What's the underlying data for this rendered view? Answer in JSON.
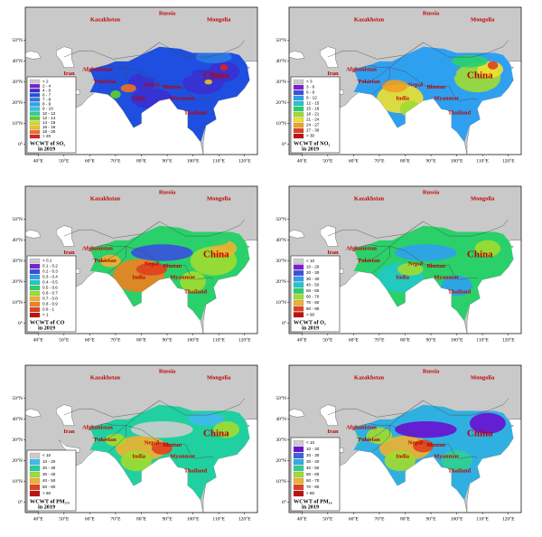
{
  "map_labels": [
    "Russia",
    "Kazakhstan",
    "Mongolia",
    "Iran",
    "Afghanistan",
    "Pakistan",
    "India",
    "Nepal",
    "Bhutan",
    "Myanmar",
    "Thailand",
    "China"
  ],
  "lon_ticks": [
    {
      "value": 40,
      "label": "40°E"
    },
    {
      "value": 50,
      "label": "50°E"
    },
    {
      "value": 60,
      "label": "60°E"
    },
    {
      "value": 70,
      "label": "70°E"
    },
    {
      "value": 80,
      "label": "80°E"
    },
    {
      "value": 90,
      "label": "90°E"
    },
    {
      "value": 100,
      "label": "100°E"
    },
    {
      "value": 110,
      "label": "110°E"
    },
    {
      "value": 120,
      "label": "120°E"
    }
  ],
  "lat_ticks": [
    {
      "value": 0,
      "label": "0°"
    },
    {
      "value": 10,
      "label": "10°N"
    },
    {
      "value": 20,
      "label": "20°N"
    },
    {
      "value": 30,
      "label": "30°N"
    },
    {
      "value": 40,
      "label": "40°N"
    },
    {
      "value": 50,
      "label": "50°N"
    }
  ],
  "panels": [
    {
      "title": "WCWT of SO₂",
      "year": "in 2019",
      "legend": {
        "labels": [
          "< 2",
          "2 - 4",
          "4 - 6",
          "6 - 7",
          "7 - 8",
          "8 - 9",
          "9 - 10",
          "10 - 12",
          "12 - 14",
          "14 - 16",
          "16 - 18",
          "18 - 20",
          "> 20"
        ],
        "colors": [
          "#cccccc",
          "#7a1fd6",
          "#3a2fd0",
          "#1f4fe0",
          "#2a7ae8",
          "#2fa0f0",
          "#20c8e8",
          "#2ad08a",
          "#5ad02a",
          "#c8e02a",
          "#f0c020",
          "#f07020",
          "#e02020"
        ]
      }
    },
    {
      "title": "WCWT of NO₂",
      "year": "in 2019",
      "legend": {
        "labels": [
          "< 3",
          "3 - 6",
          "6 - 9",
          "9 - 12",
          "12 - 15",
          "15 - 18",
          "18 - 21",
          "21 - 24",
          "24 - 27",
          "27 - 30",
          "> 30"
        ],
        "colors": [
          "#cccccc",
          "#7a1fd6",
          "#3a4fe0",
          "#2fa0f0",
          "#20c8c8",
          "#2ad06a",
          "#a0dc30",
          "#f0e030",
          "#f0a020",
          "#e04020",
          "#c01010"
        ]
      }
    },
    {
      "title": "WCWT of CO",
      "year": "in 2019",
      "legend": {
        "labels": [
          "< 0.1",
          "0.1 - 0.2",
          "0.2 - 0.3",
          "0.3 - 0.4",
          "0.4 - 0.5",
          "0.5 - 0.6",
          "0.6 - 0.7",
          "0.7 - 0.8",
          "0.8 - 0.9",
          "0.9 - 1",
          "> 1"
        ],
        "colors": [
          "#cccccc",
          "#7a1fd6",
          "#3a4fe0",
          "#2fa0f0",
          "#20c8c8",
          "#2ad06a",
          "#a0dc30",
          "#f0b030",
          "#f08020",
          "#e04020",
          "#c01010"
        ]
      }
    },
    {
      "title": "WCWT of O₃",
      "year": "in 2019",
      "legend": {
        "labels": [
          "< 10",
          "10 - 20",
          "20 - 30",
          "30 - 40",
          "40 - 50",
          "50 - 60",
          "60 - 70",
          "70 - 80",
          "80 - 90",
          "> 90"
        ],
        "colors": [
          "#cccccc",
          "#7a1fd6",
          "#3a4fe0",
          "#2fa0f0",
          "#20c8c8",
          "#2ad06a",
          "#a0dc30",
          "#f0b030",
          "#e04020",
          "#c01010"
        ]
      }
    },
    {
      "title": "WCWT of PM₂.₅",
      "year": "in 2019",
      "legend": {
        "labels": [
          "< 10",
          "10 - 20",
          "20 - 30",
          "30 - 40",
          "40 - 50",
          "50 - 60",
          "> 60"
        ],
        "colors": [
          "#cccccc",
          "#40b8f0",
          "#20d0a0",
          "#a0dc30",
          "#f0b030",
          "#e04020",
          "#c01010"
        ]
      }
    },
    {
      "title": "WCWT of PM₁₀",
      "year": "in 2019",
      "legend": {
        "labels": [
          "< 10",
          "10 - 20",
          "20 - 30",
          "30 - 40",
          "40 - 50",
          "50 - 60",
          "60 - 70",
          "70 - 80",
          "> 80"
        ],
        "colors": [
          "#cccccc",
          "#6a10d0",
          "#4060e0",
          "#30b0e0",
          "#30d090",
          "#a0dc30",
          "#f0b030",
          "#e04020",
          "#c01010"
        ]
      }
    }
  ]
}
